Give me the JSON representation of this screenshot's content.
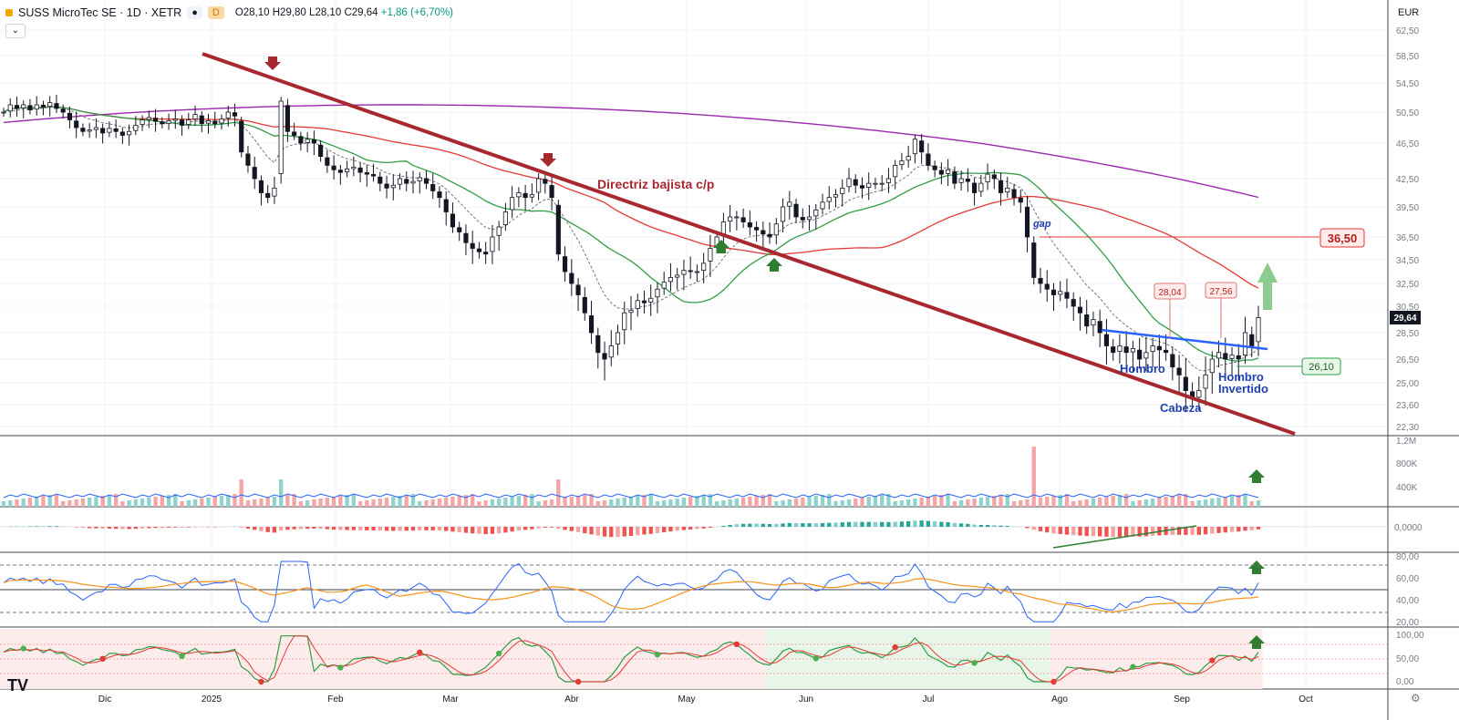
{
  "header": {
    "symbol": "SUSS MicroTec SE · 1D · XETR",
    "interval_btn": "D",
    "open": "O28,10",
    "high": "H29,80",
    "low": "L28,10",
    "close": "C29,64",
    "change": "+1,86 (+6,70%)",
    "collapse_icon": "chevron-down-icon"
  },
  "currency": "EUR",
  "logo": "TV",
  "colors": {
    "up": "#26a69a",
    "down": "#131722",
    "sma20": "#2e9d45",
    "sma50": "#e53935",
    "sma200": "#9c27b0",
    "trendline": "#a82830",
    "neckline": "#2962ff",
    "ann_blue": "#1e40af",
    "ann_red": "#b71c1c"
  },
  "chart_data": {
    "type": "candlestick",
    "price_axis": {
      "ticks": [
        "62,50",
        "58,50",
        "54,50",
        "50,50",
        "46,50",
        "42,50",
        "39,50",
        "36,50",
        "34,50",
        "32,50",
        "30,50",
        "28,50",
        "26,50",
        "25,00",
        "23,60",
        "22,30"
      ],
      "last_price_label": "29,64"
    },
    "x_axis": {
      "ticks": [
        "Dic",
        "2025",
        "Feb",
        "Mar",
        "Abr",
        "May",
        "Jun",
        "Jul",
        "Ago",
        "Sep",
        "Oct"
      ]
    },
    "closes": [
      50.5,
      51.5,
      51.0,
      51.5,
      50.8,
      51.5,
      51.2,
      51.8,
      51.0,
      50.5,
      49.5,
      48.5,
      48.0,
      48.2,
      48.5,
      47.8,
      48.4,
      48.0,
      47.5,
      48.0,
      48.8,
      49.5,
      49.8,
      49.3,
      49.0,
      49.4,
      49.6,
      48.8,
      49.5,
      50.2,
      49.0,
      49.4,
      49.0,
      49.6,
      50.5,
      50.0,
      45.5,
      44.0,
      42.5,
      41.0,
      40.5,
      41.5,
      52.0,
      48.0,
      47.5,
      46.5,
      47.0,
      46.5,
      45.0,
      44.0,
      43.5,
      43.2,
      43.6,
      43.8,
      43.2,
      43.0,
      42.8,
      42.0,
      41.5,
      41.8,
      42.5,
      42.0,
      42.2,
      42.6,
      42.0,
      41.2,
      40.5,
      39.0,
      37.5,
      37.0,
      36.0,
      35.5,
      35.2,
      35.0,
      36.5,
      37.5,
      39.0,
      40.5,
      41.0,
      40.5,
      40.8,
      42.5,
      42.0,
      40.5,
      35.0,
      33.5,
      32.5,
      31.5,
      30.0,
      28.5,
      27.0,
      26.5,
      27.5,
      28.5,
      30.0,
      30.2,
      31.0,
      30.8,
      31.2,
      32.0,
      32.6,
      33.0,
      33.2,
      33.6,
      33.5,
      33.5,
      34.2,
      35.5,
      36.5,
      38.0,
      38.5,
      38.5,
      38.0,
      37.5,
      37.2,
      36.8,
      36.5,
      37.8,
      39.5,
      40.0,
      38.5,
      38.2,
      38.5,
      39.2,
      40.0,
      40.5,
      40.8,
      41.5,
      42.5,
      41.8,
      41.5,
      42.0,
      42.0,
      42.0,
      42.5,
      44.0,
      44.5,
      45.0,
      47.0,
      45.5,
      44.0,
      43.5,
      43.0,
      43.5,
      42.0,
      42.5,
      42.2,
      41.0,
      42.0,
      43.0,
      42.5,
      41.0,
      41.5,
      40.5,
      40.0,
      36.5,
      33.0,
      32.5,
      32.0,
      31.5,
      31.8,
      31.2,
      30.5,
      30.0,
      29.0,
      29.5,
      28.5,
      27.5,
      27.0,
      27.5,
      27.0,
      27.3,
      26.5,
      27.0,
      27.5,
      27.2,
      27.0,
      26.0,
      25.5,
      24.5,
      24.0,
      24.5,
      25.5,
      26.5,
      27.0,
      26.5,
      26.8,
      26.5,
      28.5,
      27.5,
      29.64
    ],
    "series": [
      {
        "name": "SMA 20"
      },
      {
        "name": "SMA 50"
      },
      {
        "name": "SMA 200"
      }
    ],
    "annotations": {
      "trendline_label": "Directriz bajista c/p",
      "gap_label": "gap",
      "shoulder_label": "Hombro",
      "head_label": "Cabeza",
      "inv_shoulder_label1": "Hombro",
      "inv_shoulder_label2": "Invertido",
      "level_3650": "36,50",
      "level_2610": "26,10",
      "peak_2804": "28,04",
      "peak_2756": "27,56"
    },
    "volume_axis": {
      "ticks": [
        "1,2M",
        "800K",
        "400K"
      ]
    },
    "osc_axis": {
      "ticks": [
        "0,0000"
      ]
    },
    "rsi_axis": {
      "ticks": [
        "80,00",
        "60,00",
        "40,00",
        "20,00"
      ]
    },
    "stoch_axis": {
      "ticks": [
        "100,00",
        "50,00",
        "0,00"
      ]
    }
  }
}
